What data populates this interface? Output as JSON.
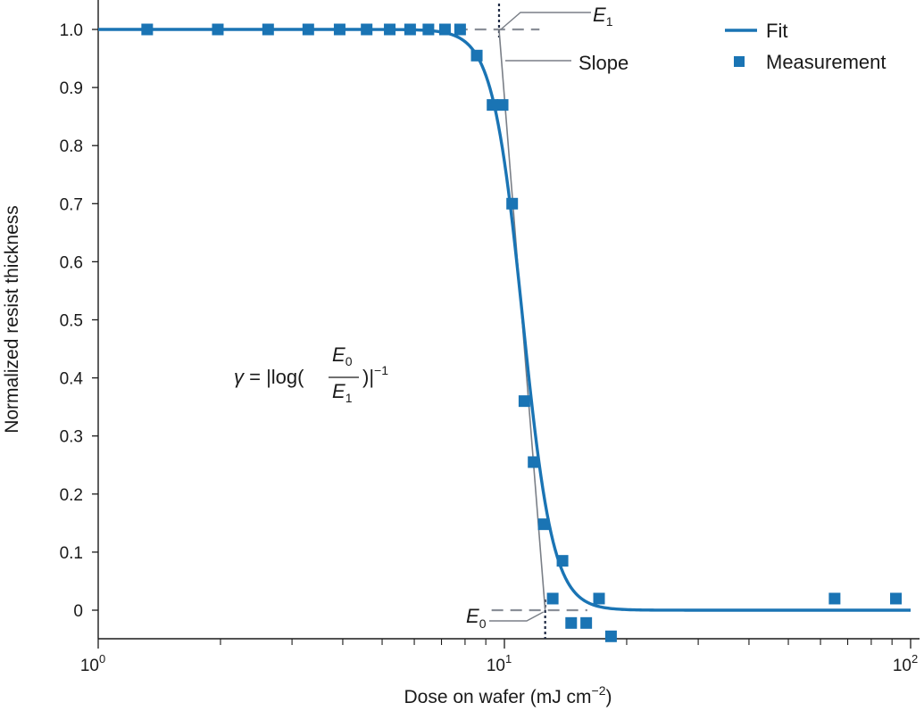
{
  "chart_data": {
    "type": "scatter",
    "x_scale": "log",
    "xlim": [
      1,
      100
    ],
    "ylim": [
      -0.05,
      1.05
    ],
    "xlabel": "Dose on wafer (mJ cm",
    "xlabel_sup": "−2",
    "xlabel_end": ")",
    "ylabel": "Normalized resist thickness",
    "x_tick_labels": [
      {
        "value": 1,
        "base": "10",
        "exp": "0"
      },
      {
        "value": 10,
        "base": "10",
        "exp": "1"
      },
      {
        "value": 100,
        "base": "10",
        "exp": "2"
      }
    ],
    "y_ticks": [
      0,
      0.1,
      0.2,
      0.3,
      0.4,
      0.5,
      0.6,
      0.7,
      0.8,
      0.9,
      1.0
    ],
    "y_tick_labels": [
      "0",
      "0.1",
      "0.2",
      "0.3",
      "0.4",
      "0.5",
      "0.6",
      "0.7",
      "0.8",
      "0.9",
      "1.0"
    ],
    "colors": {
      "series": "#1a74b4",
      "guide": "#7a7f87",
      "dashed": "#8a8f98",
      "dotted": "#1f2a44"
    },
    "legend": {
      "placement": "top-right",
      "fit_label": "Fit",
      "measurement_label": "Measurement"
    },
    "series": [
      {
        "name": "Measurement",
        "marker": "square",
        "points": [
          [
            1.32,
            1.0
          ],
          [
            1.97,
            1.0
          ],
          [
            2.62,
            1.0
          ],
          [
            3.29,
            1.0
          ],
          [
            3.93,
            1.0
          ],
          [
            4.58,
            1.0
          ],
          [
            5.22,
            1.0
          ],
          [
            5.86,
            1.0
          ],
          [
            6.5,
            1.0
          ],
          [
            7.14,
            1.0
          ],
          [
            7.78,
            1.0
          ],
          [
            8.55,
            0.955
          ],
          [
            9.35,
            0.87
          ],
          [
            9.9,
            0.87
          ],
          [
            10.45,
            0.7
          ],
          [
            11.2,
            0.36
          ],
          [
            11.8,
            0.255
          ],
          [
            12.5,
            0.148
          ],
          [
            13.15,
            0.02
          ],
          [
            13.9,
            0.085
          ],
          [
            14.6,
            -0.022
          ],
          [
            15.9,
            -0.022
          ],
          [
            17.1,
            0.02
          ],
          [
            18.3,
            -0.045
          ],
          [
            65.0,
            0.02
          ],
          [
            92.0,
            0.02
          ]
        ]
      },
      {
        "name": "Fit",
        "type": "line",
        "model": "sigmoid-log",
        "center": 11.1,
        "steepness": 27,
        "x_range": [
          1,
          100
        ]
      }
    ],
    "annotations": {
      "E1": {
        "letter": "E",
        "sub": "1",
        "dose": 9.7
      },
      "E0": {
        "letter": "E",
        "sub": "0",
        "dose": 12.6
      },
      "slope_label": "Slope",
      "formula": {
        "gamma": "γ",
        "prefix": " = |log(",
        "num_letter": "E",
        "num_sub": "0",
        "den_letter": "E",
        "den_sub": "1",
        "suffix": ")|",
        "sup": "−1"
      }
    }
  }
}
